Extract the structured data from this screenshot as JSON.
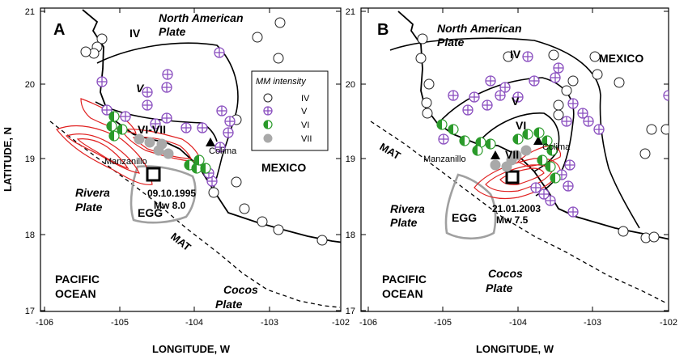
{
  "figure": {
    "ylabel": "LATITUDE, N",
    "xlabel": "LONGITUDE, W"
  },
  "legend": {
    "title": "MM intensity",
    "items": [
      {
        "label": "IV",
        "symbol": "open-circle"
      },
      {
        "label": "V",
        "symbol": "purple-cross-circle"
      },
      {
        "label": "VI",
        "symbol": "half-green-circle"
      },
      {
        "label": "VII",
        "symbol": "gray-circle"
      }
    ]
  },
  "colors": {
    "intensity_iv": "#ffffff",
    "intensity_v": "#8a4fbf",
    "intensity_vi": "#2a9a2a",
    "intensity_vii": "#a9a9a9",
    "slip_contours": "#e02020",
    "egg_outline": "#a0a0a0",
    "lines": "#000000"
  },
  "panels": [
    {
      "id": "A",
      "label": "A",
      "x_ticks": [
        "-106",
        "-105",
        "-104",
        "-103",
        "-102"
      ],
      "y_ticks": [
        "21",
        "20",
        "19",
        "18",
        "17"
      ],
      "labels": {
        "na_plate_1": "North American",
        "na_plate_2": "Plate",
        "zone_iv": "IV",
        "zone_v": "V",
        "zone_vi_vii": "VI-VII",
        "colima": "Colima",
        "manzanillo": "Manzanillo",
        "mexico": "MEXICO",
        "rivera_1": "Rivera",
        "rivera_2": "Plate",
        "egg": "EGG",
        "mat": "MAT",
        "event_date": "09.10.1995",
        "event_mag": "Mw 8.0",
        "pacific_1": "PACIFIC",
        "pacific_2": "OCEAN",
        "cocos_1": "Cocos",
        "cocos_2": "Plate"
      }
    },
    {
      "id": "B",
      "label": "B",
      "x_ticks": [
        "-106",
        "-105",
        "-104",
        "-103",
        "-102"
      ],
      "y_ticks": [
        "21",
        "20",
        "19",
        "18",
        "17"
      ],
      "labels": {
        "na_plate_1": "North American",
        "na_plate_2": "Plate",
        "zone_iv": "IV",
        "zone_v": "V",
        "zone_vi": "VI",
        "zone_vii": "VII",
        "colima": "Colima",
        "manzanillo": "Manzanillo",
        "mexico": "MEXICO",
        "mat": "MAT",
        "rivera_1": "Rivera",
        "rivera_2": "Plate",
        "egg": "EGG",
        "event_date": "21.01.2003",
        "event_mag": "Mw 7.5",
        "pacific_1": "PACIFIC",
        "pacific_2": "OCEAN",
        "cocos_1": "Cocos",
        "cocos_2": "Plate"
      }
    }
  ]
}
